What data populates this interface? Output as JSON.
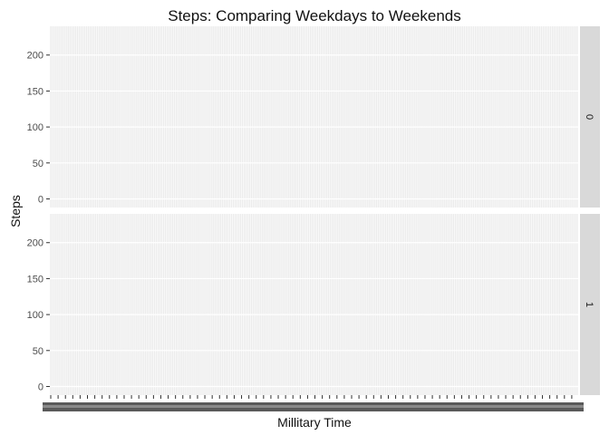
{
  "chart_data": {
    "type": "line",
    "title": "Steps: Comparing Weekdays to Weekends",
    "xlabel": "Millitary Time",
    "ylabel": "Steps",
    "facets": [
      "0",
      "1"
    ],
    "yticks": [
      0,
      50,
      100,
      150,
      200
    ],
    "ylim": [
      -12,
      240
    ],
    "x_category_count": 288,
    "x_major_tick_interval": 4,
    "grid": true,
    "series": []
  },
  "colors": {
    "panel_background": "#ebebeb",
    "grid_major": "#ffffff",
    "strip_background": "#d9d9d9",
    "tick_color": "#333333"
  }
}
